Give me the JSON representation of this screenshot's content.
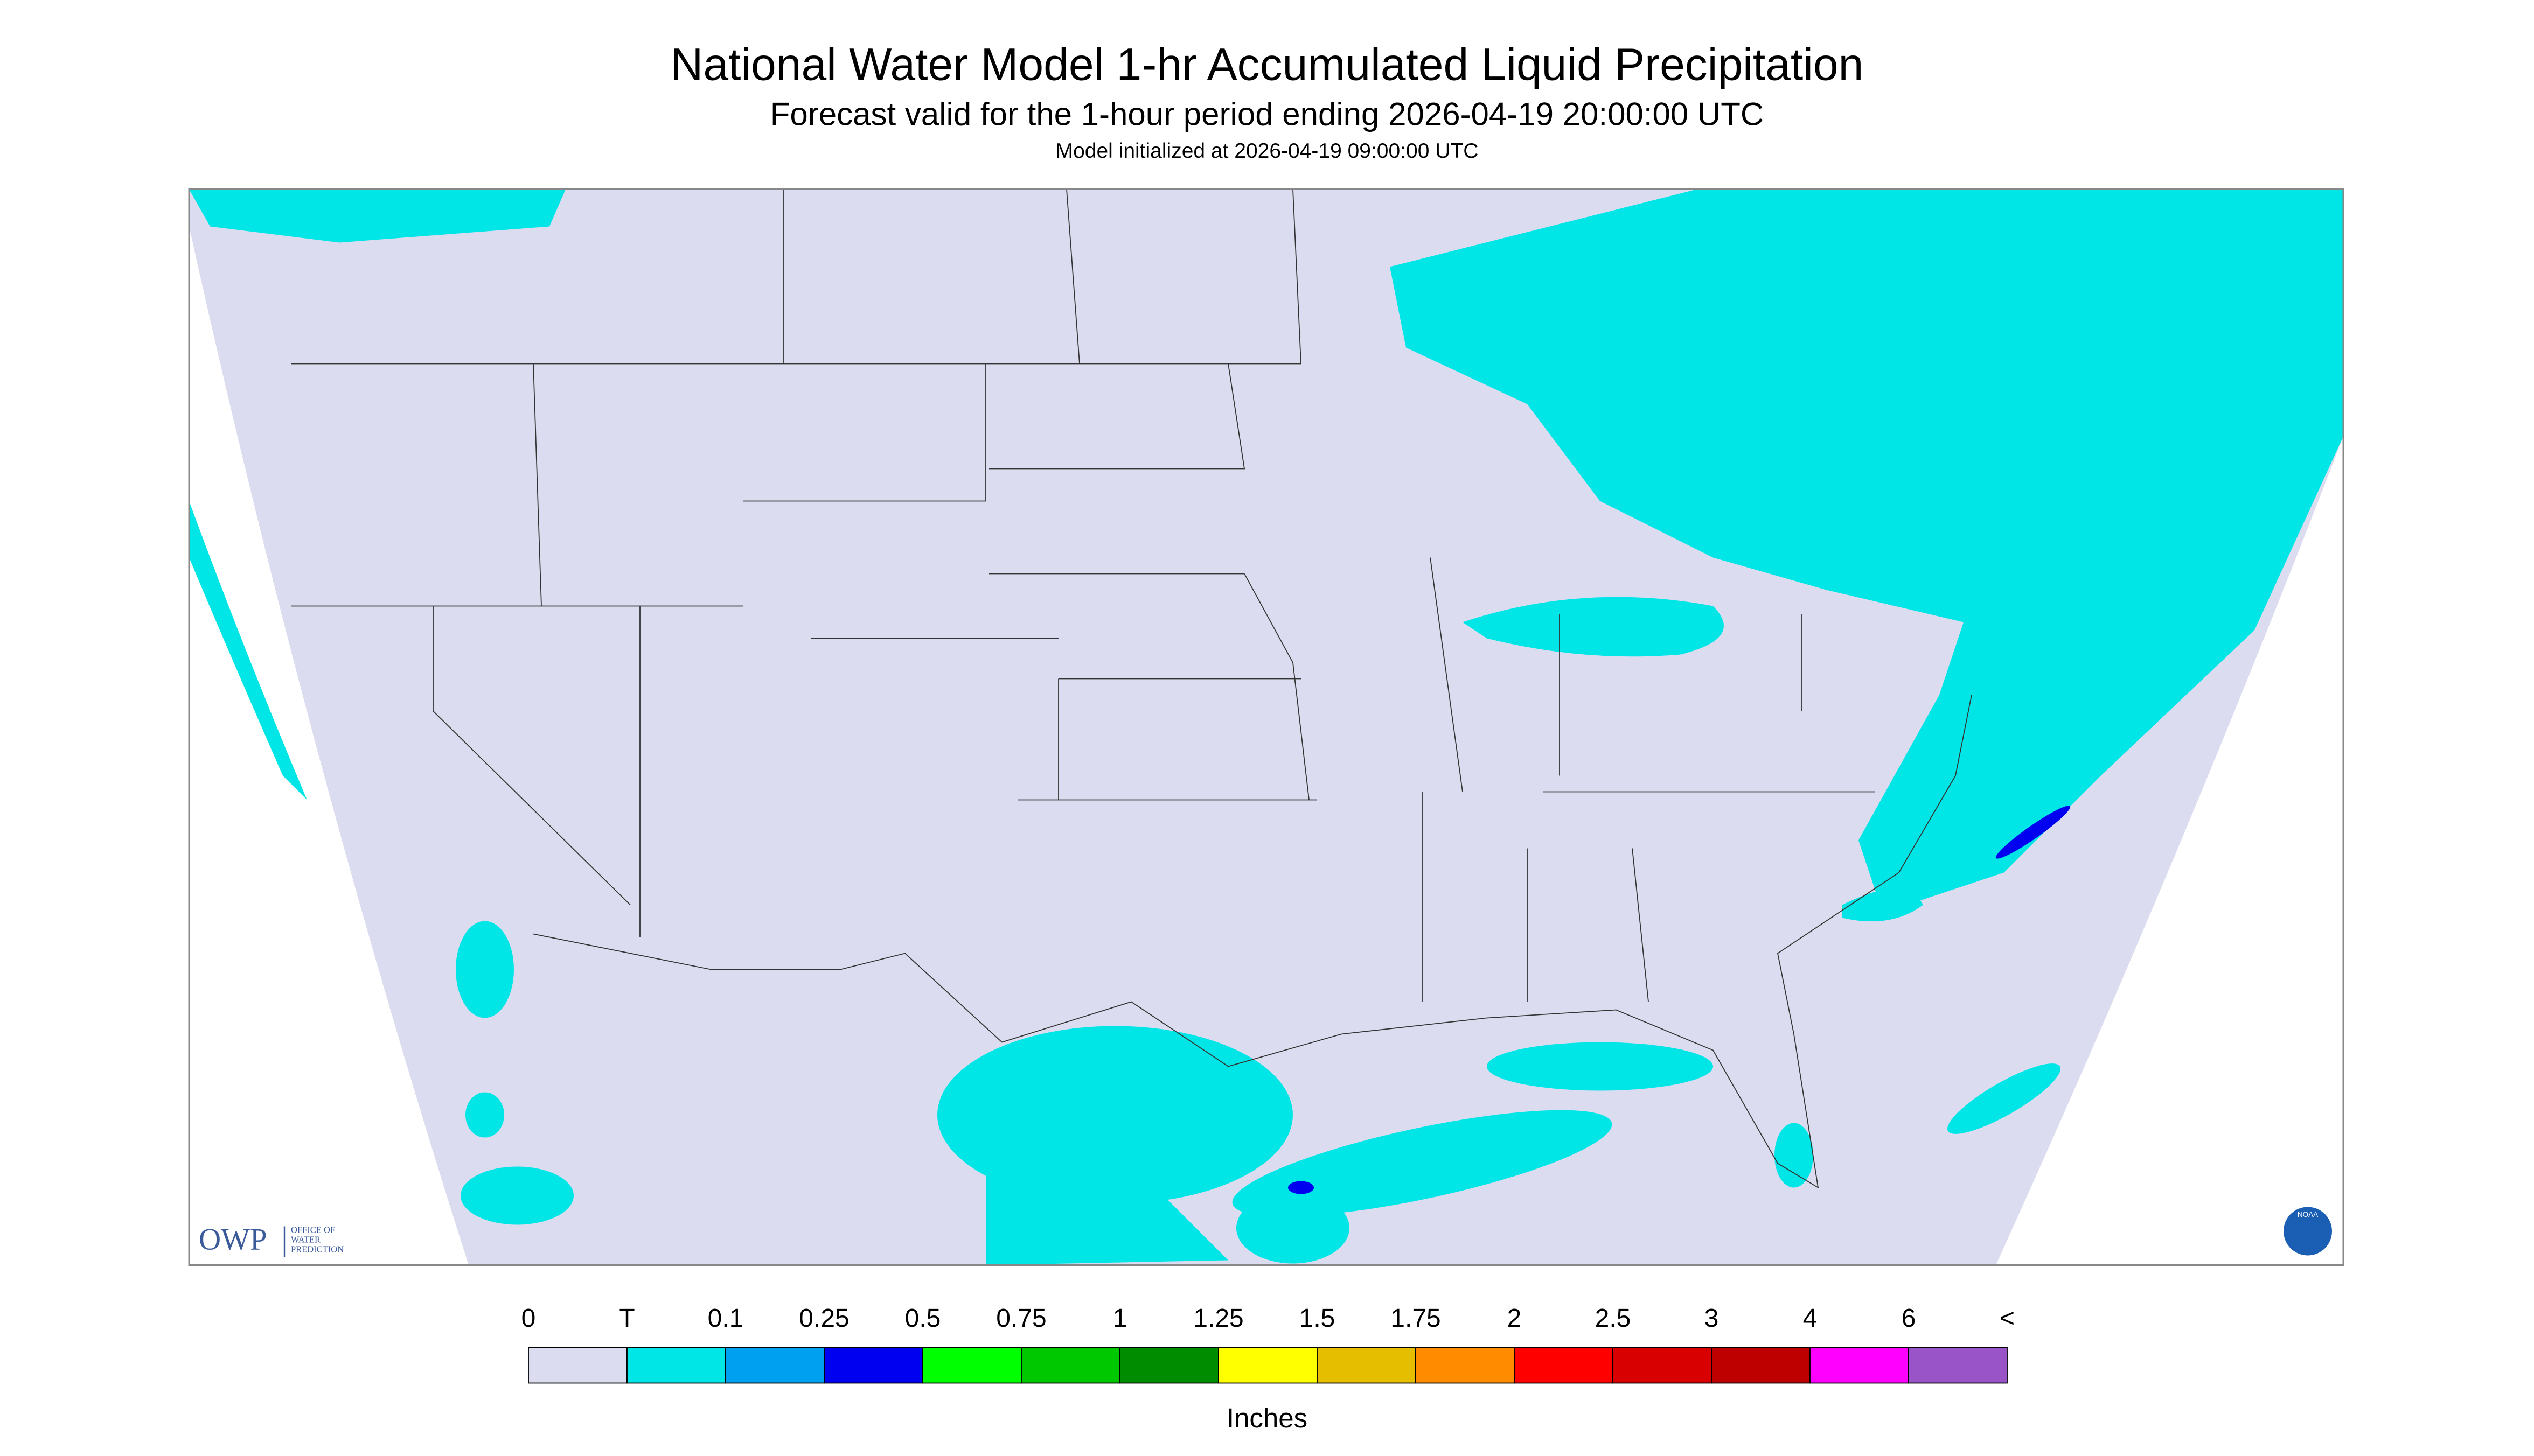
{
  "header": {
    "title": "National Water Model 1-hr Accumulated Liquid Precipitation",
    "subtitle": "Forecast valid for the 1-hour period ending 2026-04-19 20:00:00 UTC",
    "init": "Model initialized at 2026-04-19 09:00:00 UTC"
  },
  "logos": {
    "owp": "OWP",
    "owp_text": [
      "OFFICE OF",
      "WATER",
      "PREDICTION"
    ],
    "noaa": "NOAA"
  },
  "legend": {
    "labels": [
      "0",
      "T",
      "0.1",
      "0.25",
      "0.5",
      "0.75",
      "1",
      "1.25",
      "1.5",
      "1.75",
      "2",
      "2.5",
      "3",
      "4",
      "6",
      "<"
    ],
    "colors": [
      "#dcdcf0",
      "#00e6e6",
      "#00a0f0",
      "#0000f0",
      "#00ff00",
      "#00c800",
      "#008c00",
      "#ffff00",
      "#e6be00",
      "#ff8c00",
      "#ff0000",
      "#d80000",
      "#be0000",
      "#ff00ff",
      "#9955c8"
    ],
    "unit": "Inches"
  }
}
